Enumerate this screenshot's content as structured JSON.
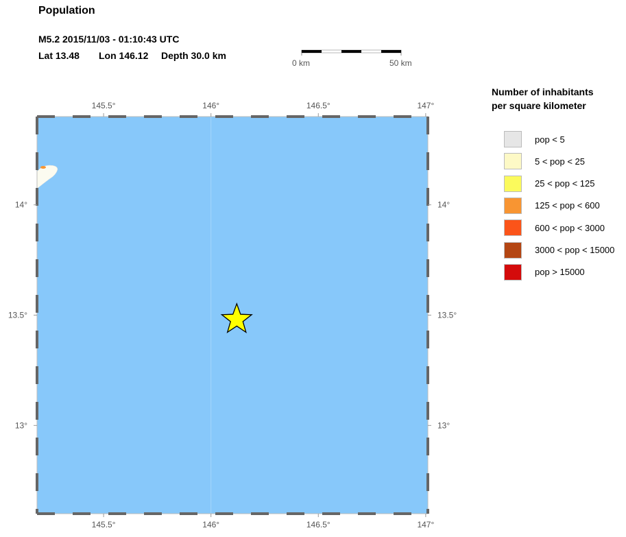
{
  "title": "Population",
  "event": {
    "line1": "M5.2  2015/11/03 - 01:10:43 UTC",
    "lat_label": "Lat 13.48",
    "lon_label": "Lon 146.12",
    "depth_label": "Depth  30.0 km",
    "lat": 13.48,
    "lon": 146.12
  },
  "scalebar": {
    "start_label": "0 km",
    "end_label": "50 km"
  },
  "map": {
    "lon_range": [
      145.19,
      147.01
    ],
    "lat_range": [
      12.6,
      14.4
    ],
    "lon_ticks": [
      "145.5°",
      "146°",
      "146.5°",
      "147°"
    ],
    "lon_tick_values": [
      145.5,
      146.0,
      146.5,
      147.0
    ],
    "lat_ticks": [
      "14°",
      "13.5°",
      "13°"
    ],
    "lat_tick_values": [
      14.0,
      13.5,
      13.0
    ],
    "water_color": "#87c8fa",
    "epicenter_marker": "star-icon",
    "epicenter_color": "#ffff00"
  },
  "legend": {
    "title_line1": "Number of inhabitants",
    "title_line2": "per square kilometer",
    "items": [
      {
        "label": "pop < 5",
        "color": "#e6e6e6"
      },
      {
        "label": "5 < pop < 25",
        "color": "#fdf9c6"
      },
      {
        "label": "25 < pop < 125",
        "color": "#fbfa5c"
      },
      {
        "label": "125 < pop < 600",
        "color": "#f89532"
      },
      {
        "label": "600 < pop < 3000",
        "color": "#fb5419"
      },
      {
        "label": "3000 < pop < 15000",
        "color": "#b44613"
      },
      {
        "label": "pop > 15000",
        "color": "#d40b0b"
      }
    ]
  }
}
